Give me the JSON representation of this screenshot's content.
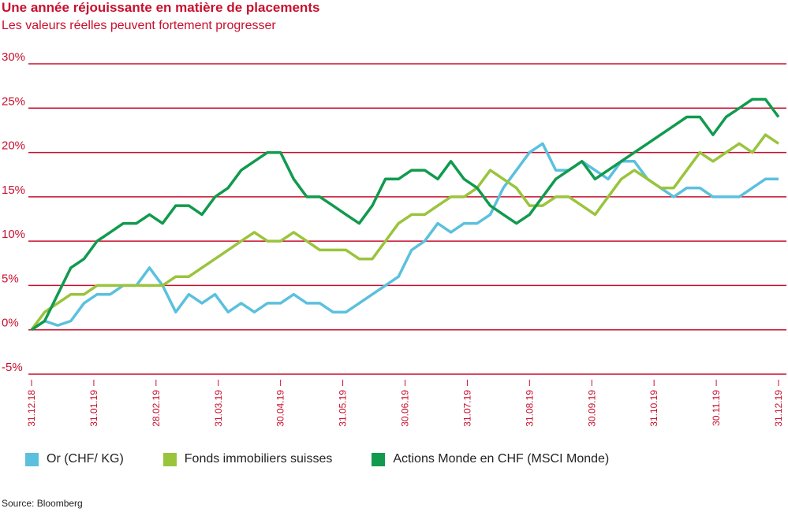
{
  "title": "Une année réjouissante en matière de placements",
  "subtitle": "Les valeurs réelles peuvent fortement progresser",
  "source": "Source: Bloomberg",
  "colors": {
    "accent": "#c8102e",
    "or": "#5bc0de",
    "fonds": "#9ac43c",
    "actions": "#119a4e"
  },
  "chart_data": {
    "type": "line",
    "y_ticks": [
      "30%",
      "25%",
      "20%",
      "15%",
      "10%",
      "5%",
      "0%",
      "-5%"
    ],
    "ylim": [
      -5,
      30
    ],
    "x_ticks": [
      "31.12.18",
      "31.01.19",
      "28.02.19",
      "31.03.19",
      "30.04.19",
      "31.05.19",
      "30.06.19",
      "31.07.19",
      "31.08.19",
      "30.09.19",
      "31.10.19",
      "30.11.19",
      "31.12.19"
    ],
    "grid": true,
    "legend_position": "bottom",
    "series": [
      {
        "name": "Or (CHF/ KG)",
        "color_key": "or",
        "values": [
          0,
          1,
          0.5,
          1,
          3,
          4,
          4,
          5,
          5,
          7,
          5,
          2,
          4,
          3,
          4,
          2,
          3,
          2,
          3,
          3,
          4,
          3,
          3,
          2,
          2,
          3,
          4,
          5,
          6,
          9,
          10,
          12,
          11,
          12,
          12,
          13,
          16,
          18,
          20,
          21,
          18,
          18,
          19,
          18,
          17,
          19,
          19,
          17,
          16,
          15,
          16,
          16,
          15,
          15,
          15,
          16,
          17,
          17
        ]
      },
      {
        "name": "Fonds immobiliers suisses",
        "color_key": "fonds",
        "values": [
          0,
          2,
          3,
          4,
          4,
          5,
          5,
          5,
          5,
          5,
          5,
          6,
          6,
          7,
          8,
          9,
          10,
          11,
          10,
          10,
          11,
          10,
          9,
          9,
          9,
          8,
          8,
          10,
          12,
          13,
          13,
          14,
          15,
          15,
          16,
          18,
          17,
          16,
          14,
          14,
          15,
          15,
          14,
          13,
          15,
          17,
          18,
          17,
          16,
          16,
          18,
          20,
          19,
          20,
          21,
          20,
          22,
          21
        ]
      },
      {
        "name": "Actions Monde en CHF (MSCI Monde)",
        "color_key": "actions",
        "values": [
          0,
          1,
          4,
          7,
          8,
          10,
          11,
          12,
          12,
          13,
          12,
          14,
          14,
          13,
          15,
          16,
          18,
          19,
          20,
          20,
          17,
          15,
          15,
          14,
          13,
          12,
          14,
          17,
          17,
          18,
          18,
          17,
          19,
          17,
          16,
          14,
          13,
          12,
          13,
          15,
          17,
          18,
          19,
          17,
          18,
          19,
          20,
          21,
          22,
          23,
          24,
          24,
          22,
          24,
          25,
          26,
          26,
          24
        ]
      }
    ]
  }
}
